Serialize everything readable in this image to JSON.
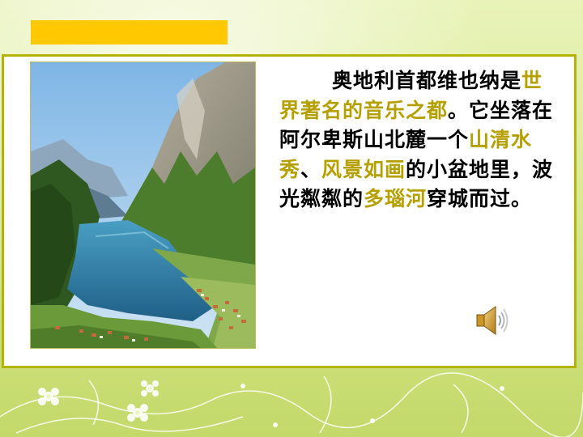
{
  "slide": {
    "paragraph": [
      {
        "text": "奥地利首都维也纳是",
        "highlight": false
      },
      {
        "text": "世界著名的音乐之都",
        "highlight": true
      },
      {
        "text": "。它坐落在阿尔卑斯山北麓一个",
        "highlight": false
      },
      {
        "text": "山清水秀",
        "highlight": true
      },
      {
        "text": "、",
        "highlight": false
      },
      {
        "text": "风景如画",
        "highlight": true
      },
      {
        "text": "的小盆地里，波光粼粼的",
        "highlight": false
      },
      {
        "text": "多瑙河",
        "highlight": true
      },
      {
        "text": "穿城而过。",
        "highlight": false
      }
    ]
  },
  "audio": {
    "icon": "speaker-icon"
  },
  "colors": {
    "title_bar": "#ffc800",
    "highlight_text": "#b5a000",
    "panel_border": "#b4b400",
    "background": "#dcec9c"
  }
}
